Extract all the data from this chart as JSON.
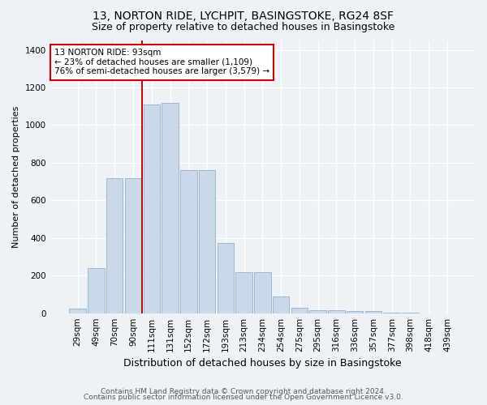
{
  "title": "13, NORTON RIDE, LYCHPIT, BASINGSTOKE, RG24 8SF",
  "subtitle": "Size of property relative to detached houses in Basingstoke",
  "xlabel": "Distribution of detached houses by size in Basingstoke",
  "ylabel": "Number of detached properties",
  "categories": [
    "29sqm",
    "49sqm",
    "70sqm",
    "90sqm",
    "111sqm",
    "131sqm",
    "152sqm",
    "172sqm",
    "193sqm",
    "213sqm",
    "234sqm",
    "254sqm",
    "275sqm",
    "295sqm",
    "316sqm",
    "336sqm",
    "357sqm",
    "377sqm",
    "398sqm",
    "418sqm",
    "439sqm"
  ],
  "values": [
    25,
    240,
    720,
    720,
    1110,
    1120,
    760,
    760,
    375,
    220,
    220,
    90,
    28,
    18,
    15,
    10,
    10,
    3,
    3,
    0,
    0
  ],
  "bar_color": "#c9d9ea",
  "bar_edge_color": "#9ab8cc",
  "vline_x_index": 4,
  "annotation_text": "13 NORTON RIDE: 93sqm\n← 23% of detached houses are smaller (1,109)\n76% of semi-detached houses are larger (3,579) →",
  "annotation_box_facecolor": "#ffffff",
  "annotation_box_edgecolor": "#cc0000",
  "vline_color": "#cc0000",
  "footer_line1": "Contains HM Land Registry data © Crown copyright and database right 2024.",
  "footer_line2": "Contains public sector information licensed under the Open Government Licence v3.0.",
  "ylim": [
    0,
    1450
  ],
  "yticks": [
    0,
    200,
    400,
    600,
    800,
    1000,
    1200,
    1400
  ],
  "bg_color": "#eef2f7",
  "grid_color": "#ffffff",
  "title_fontsize": 10,
  "subtitle_fontsize": 9,
  "ylabel_fontsize": 8,
  "xlabel_fontsize": 9,
  "tick_fontsize": 7.5,
  "annot_fontsize": 7.5,
  "footer_fontsize": 6.5
}
